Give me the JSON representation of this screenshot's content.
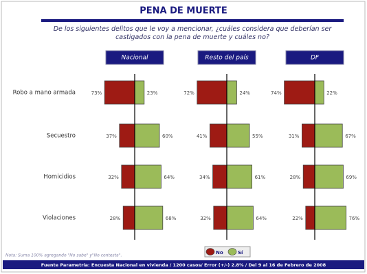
{
  "chart_data": {
    "type": "diverging_bar",
    "title": "PENA DE MUERTE",
    "subtitle": "De los siguientes delitos que le voy a mencionar, ¿cuáles considera que deberían ser castigados con la pena de muerte y cuáles no?",
    "categories": [
      "Robo a mano armada",
      "Secuestro",
      "Homicidios",
      "Violaciones"
    ],
    "legend": [
      {
        "name": "No",
        "color": "#9e1b14"
      },
      {
        "name": "Sí",
        "color": "#9bbb59"
      }
    ],
    "panels": [
      {
        "title": "Nacional",
        "series": [
          {
            "values": [
              73,
              37,
              32,
              28
            ],
            "value_labels": [
              "73%",
              "37%",
              "32%",
              "28%"
            ]
          },
          {
            "values": [
              23,
              60,
              64,
              68
            ],
            "value_labels": [
              "23%",
              "60%",
              "64%",
              "68%"
            ]
          }
        ]
      },
      {
        "title": "Resto del país",
        "series": [
          {
            "values": [
              72,
              41,
              34,
              32
            ],
            "value_labels": [
              "72%",
              "41%",
              "34%",
              "32%"
            ]
          },
          {
            "values": [
              24,
              55,
              61,
              64
            ],
            "value_labels": [
              "24%",
              "55%",
              "61%",
              "64%"
            ]
          }
        ]
      },
      {
        "title": "DF",
        "series": [
          {
            "values": [
              74,
              31,
              28,
              22
            ],
            "value_labels": [
              "74%",
              "31%",
              "28%",
              "22%"
            ]
          },
          {
            "values": [
              22,
              67,
              69,
              76
            ],
            "value_labels": [
              "22%",
              "67%",
              "69%",
              "76%"
            ]
          }
        ]
      }
    ],
    "note": "Nota: Suma 100% agregando \"No sabe\" y\"No contesta\".",
    "source": "Fuente Parametría: Encuesta Nacional en vivienda / 1200 casos/ Error (+/-) 2.8% / Del 9 al 16 de Febrero de 2008"
  }
}
